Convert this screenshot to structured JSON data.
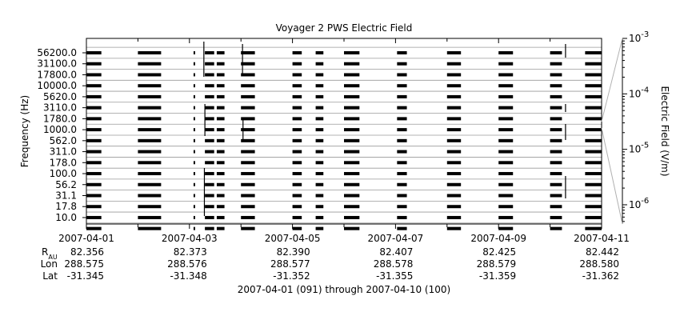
{
  "chart_data": {
    "type": "heatmap",
    "title": "Voyager 2 PWS Electric Field",
    "ylabel": "Frequency (Hz)",
    "colorbar_label": "Electric Field (V/m)",
    "xlabel": "2007-04-01 (091) through 2007-04-10 (100)",
    "frequency_channels": [
      "56200.0",
      "31100.0",
      "17800.0",
      "10000.0",
      "5620.0",
      "3110.0",
      "1780.0",
      "1000.0",
      "562.0",
      "311.0",
      "178.0",
      "100.0",
      "56.2",
      "31.1",
      "17.8",
      "10.0"
    ],
    "colorbar_scale": "log",
    "colorbar_ticks": [
      {
        "mantissa": "10",
        "exp": "-3",
        "value": 0.001
      },
      {
        "mantissa": "10",
        "exp": "-4",
        "value": 0.0001
      },
      {
        "mantissa": "10",
        "exp": "-5",
        "value": 1e-05
      },
      {
        "mantissa": "10",
        "exp": "-6",
        "value": 1e-06
      }
    ],
    "colorbar_range": [
      4.5e-07,
      0.001
    ],
    "x_range": [
      "2007-04-01",
      "2007-04-11"
    ],
    "x_ticks": [
      "2007-04-01",
      "2007-04-03",
      "2007-04-05",
      "2007-04-07",
      "2007-04-09",
      "2007-04-11"
    ],
    "data_intervals_days": [
      [
        0.0,
        0.29
      ],
      [
        1.0,
        1.45
      ],
      [
        2.08,
        2.11
      ],
      [
        2.3,
        2.48
      ],
      [
        2.53,
        2.68
      ],
      [
        3.0,
        3.27
      ],
      [
        4.0,
        4.18
      ],
      [
        4.45,
        4.6
      ],
      [
        5.0,
        5.3
      ],
      [
        6.03,
        6.22
      ],
      [
        7.0,
        7.27
      ],
      [
        8.0,
        8.28
      ],
      [
        9.0,
        9.23
      ],
      [
        9.68,
        10.0
      ]
    ],
    "ephemeris": {
      "labels": {
        "r": "R",
        "r_sub": "AU",
        "lon": "Lon",
        "lat": "Lat"
      },
      "r": [
        "82.356",
        "82.373",
        "82.390",
        "82.407",
        "82.425",
        "82.442"
      ],
      "lon": [
        "288.575",
        "288.576",
        "288.577",
        "288.578",
        "288.579",
        "288.580"
      ],
      "lat": [
        "-31.345",
        "-31.348",
        "-31.352",
        "-31.355",
        "-31.359",
        "-31.362"
      ]
    }
  }
}
